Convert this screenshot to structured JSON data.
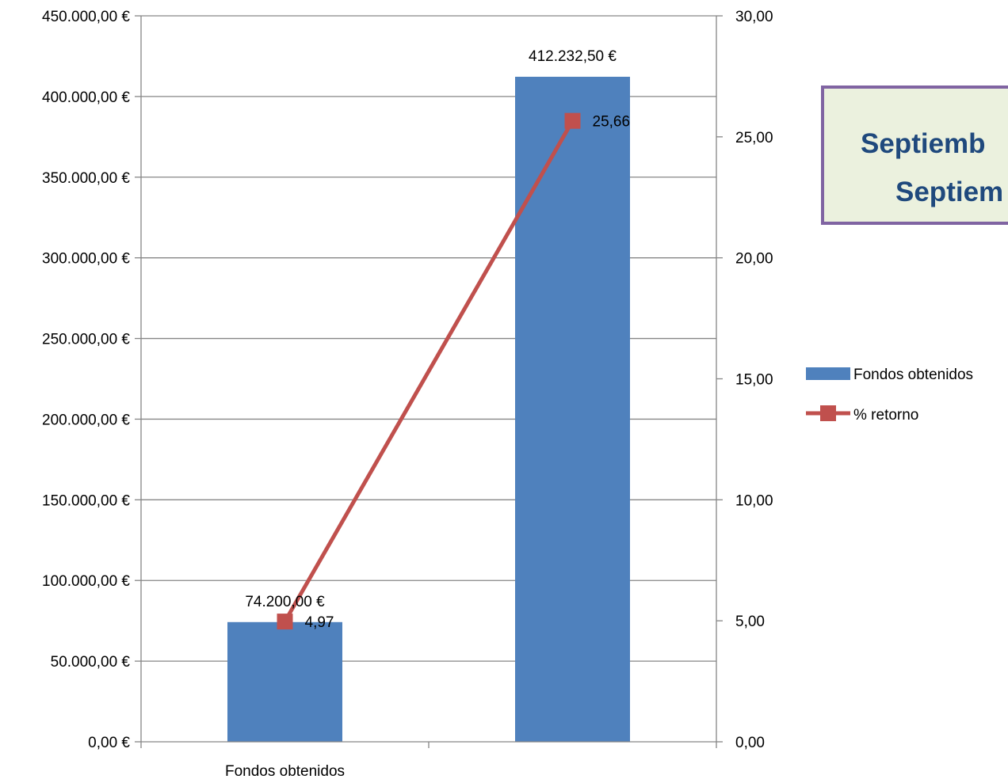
{
  "chart_data": {
    "type": "bar",
    "categories": [
      "Fondos obtenidos",
      ""
    ],
    "series": [
      {
        "name": "Fondos obtenidos",
        "kind": "bar",
        "axis": "left",
        "color": "#4f81bd",
        "values": [
          74200.0,
          412232.5
        ],
        "labels": [
          "74.200,00 €",
          "412.232,50 €"
        ]
      },
      {
        "name": "% retorno",
        "kind": "line",
        "axis": "right",
        "color": "#c0504d",
        "values": [
          4.97,
          25.66
        ],
        "labels": [
          "4,97",
          "25,66"
        ]
      }
    ],
    "y_left": {
      "min": 0,
      "max": 450000,
      "step": 50000,
      "ticks": [
        "0,00 €",
        "50.000,00 €",
        "100.000,00 €",
        "150.000,00 €",
        "200.000,00 €",
        "250.000,00 €",
        "300.000,00 €",
        "350.000,00 €",
        "400.000,00 €",
        "450.000,00 €"
      ]
    },
    "y_right": {
      "min": 0,
      "max": 30,
      "step": 5,
      "ticks": [
        "0,00",
        "5,00",
        "10,00",
        "15,00",
        "20,00",
        "25,00",
        "30,00"
      ]
    },
    "grid": true,
    "legend": {
      "position": "right",
      "items": [
        "Fondos obtenidos",
        "% retorno"
      ]
    },
    "title_box": {
      "lines": [
        "Septiemb",
        "Septiem"
      ],
      "border_color": "#8064a2",
      "fill_color": "#ebf1de",
      "text_color": "#1f497d"
    }
  }
}
